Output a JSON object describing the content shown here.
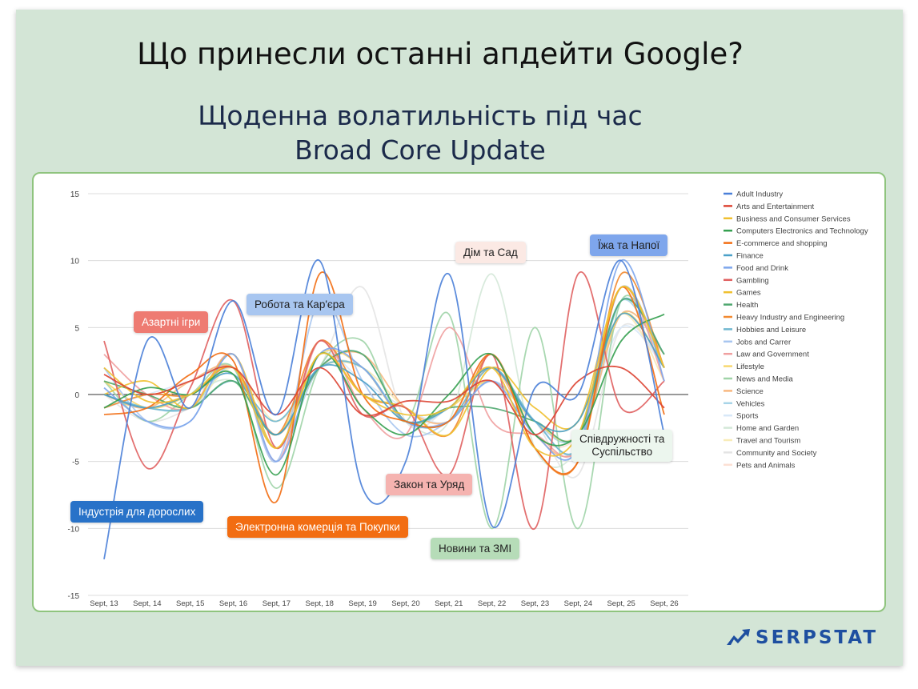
{
  "slide": {
    "title": "Що принесли останні апдейти Google?",
    "subtitle_line1": "Щоденна волатильність під час",
    "subtitle_line2": "Broad Core Update"
  },
  "annotations": [
    {
      "id": "adult",
      "text": "Індустрія для дорослих",
      "bg": "#2872c8",
      "color": "#ffffff"
    },
    {
      "id": "gambling",
      "text": "Азартні ігри",
      "bg": "#ee7b72",
      "color": "#ffffff"
    },
    {
      "id": "jobs",
      "text": "Робота та Кар'єра",
      "bg": "#a8c6f0",
      "color": "#222222"
    },
    {
      "id": "ecommerce",
      "text": "Электронна комерція та Покупки",
      "bg": "#f26d12",
      "color": "#ffffff"
    },
    {
      "id": "law",
      "text": "Закон та Уряд",
      "bg": "#f5b3b0",
      "color": "#222222"
    },
    {
      "id": "news",
      "text": "Новини та ЗМІ",
      "bg": "#b6dcb8",
      "color": "#222222"
    },
    {
      "id": "home",
      "text": "Дім та Сад",
      "bg": "#fbe9e4",
      "color": "#222222"
    },
    {
      "id": "food",
      "text": "Їжа та Напої",
      "bg": "#7ea6ec",
      "color": "#222222"
    },
    {
      "id": "community",
      "text": "Співдружності та\nСуспільство",
      "bg": "#ecf6ee",
      "color": "#222222"
    }
  ],
  "brand": {
    "name": "SERPSTAT",
    "color": "#1e4fa0"
  },
  "chart_data": {
    "type": "line",
    "title": "",
    "xlabel": "",
    "ylabel": "",
    "ylim": [
      -15,
      15
    ],
    "yticks": [
      -15,
      -10,
      -5,
      0,
      5,
      10,
      15
    ],
    "grid": true,
    "legend_position": "right",
    "categories": [
      "Sept, 13",
      "Sept, 14",
      "Sept, 15",
      "Sept, 16",
      "Sept, 17",
      "Sept, 18",
      "Sept, 19",
      "Sept, 20",
      "Sept, 21",
      "Sept, 22",
      "Sept, 23",
      "Sept, 24",
      "Sept, 25",
      "Sept, 26"
    ],
    "series": [
      {
        "name": "Adult Industry",
        "color": "#4a7fd8",
        "values": [
          -12.3,
          4,
          -1,
          7,
          -1.5,
          10,
          -7,
          -5,
          9,
          -9.8,
          0.5,
          0,
          10,
          -3
        ]
      },
      {
        "name": "Arts and Entertainment",
        "color": "#dd4433",
        "values": [
          1.5,
          0,
          1,
          2,
          -1.5,
          2,
          -1.5,
          -0.5,
          -0.5,
          1,
          -3,
          1,
          2,
          -1
        ]
      },
      {
        "name": "Business and Consumer Services",
        "color": "#f0c030",
        "values": [
          2,
          -0.5,
          0,
          2,
          -4,
          3,
          0,
          -1.5,
          -1,
          2,
          -4,
          -3,
          8,
          2
        ]
      },
      {
        "name": "Computers Electronics and Technology",
        "color": "#35a050",
        "values": [
          -1,
          0.5,
          0,
          1.5,
          -6,
          3,
          -1,
          -3,
          0,
          3,
          -3,
          -3,
          4,
          6
        ]
      },
      {
        "name": "E-commerce and shopping",
        "color": "#f26d12",
        "values": [
          -1.5,
          -1,
          1.5,
          2.5,
          -8,
          9,
          0,
          -2,
          -2,
          3,
          -4,
          -5,
          8,
          -1.5
        ]
      },
      {
        "name": "Finance",
        "color": "#4ba0c8",
        "values": [
          0,
          -1,
          0,
          1.5,
          -3,
          2,
          1,
          -2,
          -1,
          2,
          -2,
          -2,
          6,
          2
        ]
      },
      {
        "name": "Food and Drink",
        "color": "#7ea6ec",
        "values": [
          0.5,
          -2,
          -2,
          3,
          -5,
          3,
          2,
          -2,
          -2,
          1,
          -3,
          -4,
          10,
          1
        ]
      },
      {
        "name": "Gambling",
        "color": "#e06060",
        "values": [
          4,
          -5.5,
          0.5,
          7,
          -4,
          4,
          -1.5,
          -1,
          -6,
          3,
          -10,
          9,
          -1,
          1
        ]
      },
      {
        "name": "Games",
        "color": "#f0c030",
        "values": [
          0,
          1,
          -1,
          3,
          -4,
          3,
          0,
          -1,
          -3,
          2,
          -1,
          -2,
          8,
          2
        ]
      },
      {
        "name": "Health",
        "color": "#50a870",
        "values": [
          1,
          0,
          -1,
          1,
          -3,
          2,
          3,
          -2,
          -1,
          -1,
          -2,
          -3,
          7,
          3
        ]
      },
      {
        "name": "Heavy Industry and Engineering",
        "color": "#f28a30",
        "values": [
          -1,
          0,
          0,
          2,
          -3,
          4,
          0,
          -1,
          -3,
          3,
          -4,
          -5,
          9,
          2
        ]
      },
      {
        "name": "Hobbies and Leisure",
        "color": "#70b8d0",
        "values": [
          0,
          -1,
          -1,
          1,
          -2,
          2,
          2,
          -2,
          -2,
          2,
          -2,
          -4,
          7,
          3
        ]
      },
      {
        "name": "Jobs and Carrer",
        "color": "#a8c6f0",
        "values": [
          2,
          -2,
          -2,
          3,
          -5,
          7,
          1,
          -3,
          -2,
          1,
          -2,
          -4,
          8,
          2
        ]
      },
      {
        "name": "Law and Government",
        "color": "#f0a0a0",
        "values": [
          3,
          0,
          -1,
          3,
          -5,
          4,
          -1,
          -3,
          5,
          -2,
          -3,
          -4,
          8,
          1
        ]
      },
      {
        "name": "Lifestyle",
        "color": "#f8d870",
        "values": [
          1,
          -1,
          0,
          2,
          -3,
          3,
          2,
          -2,
          -1,
          1,
          -2,
          -3,
          6,
          2
        ]
      },
      {
        "name": "News and Media",
        "color": "#a0d4a8",
        "values": [
          1,
          -2,
          0,
          2,
          -7,
          2,
          4,
          -2,
          6,
          -10,
          5,
          -10,
          7,
          2
        ]
      },
      {
        "name": "Science",
        "color": "#f8b880",
        "values": [
          0,
          -1,
          1,
          2,
          -3,
          2,
          3,
          -1,
          -2,
          2,
          -3,
          -4,
          6,
          3
        ]
      },
      {
        "name": "Vehicles",
        "color": "#a8d4e8",
        "values": [
          0,
          -1,
          -1,
          2,
          -4,
          2,
          3,
          -2,
          -1,
          2,
          -2,
          -3,
          7,
          2
        ]
      },
      {
        "name": "Sports",
        "color": "#d8e8f8",
        "values": [
          -1,
          0,
          1,
          2,
          -3,
          3,
          1,
          -1,
          -2,
          2,
          -2,
          -3,
          5,
          2
        ]
      },
      {
        "name": "Home and Garden",
        "color": "#d4e8d8",
        "values": [
          0,
          -1,
          0,
          1,
          -3,
          2,
          2,
          -2,
          -2,
          9,
          -4,
          -4,
          6,
          3
        ]
      },
      {
        "name": "Travel and Tourism",
        "color": "#f8ecb8",
        "values": [
          1,
          0,
          -1,
          2,
          -2,
          2,
          2,
          -1,
          -2,
          2,
          -2,
          -2,
          6,
          1
        ]
      },
      {
        "name": "Community and Society",
        "color": "#e4e4e4",
        "values": [
          0,
          -2,
          -1,
          1,
          -2,
          2,
          8,
          -2,
          -1,
          1,
          -2,
          -6,
          5,
          2
        ]
      },
      {
        "name": "Pets and Animals",
        "color": "#fce0d4",
        "values": [
          1,
          -1,
          0,
          2,
          -3,
          2,
          2,
          -1,
          -2,
          3,
          -3,
          -3,
          6,
          1
        ]
      }
    ]
  }
}
